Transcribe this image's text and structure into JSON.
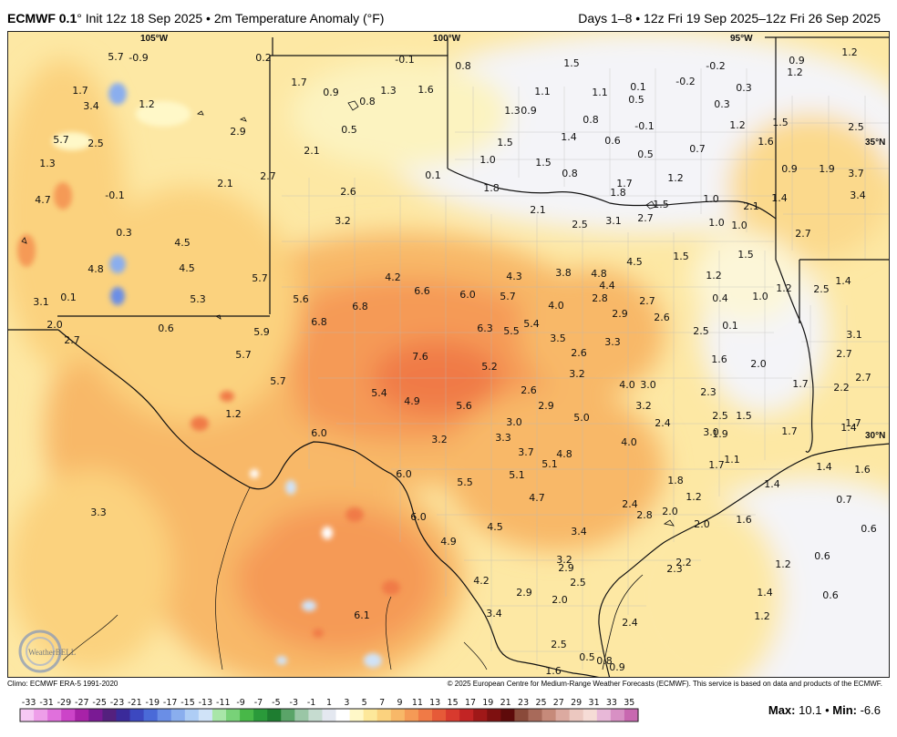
{
  "header": {
    "model": "ECMWF 0.1",
    "init": "° Init 12z 18 Sep 2025 • 2m Temperature Anomaly (°F)",
    "valid": "Days 1–8 • 12z Fri 19 Sep 2025–12z Fri 26 Sep 2025"
  },
  "coordinates": {
    "lon105": "105°W",
    "lon100": "100°W",
    "lon95": "95°W",
    "lat35": "35°N",
    "lat30": "30°N"
  },
  "footer": {
    "climo": "Climo: ECMWF ERA-5 1991-2020",
    "credit": "© 2025 European Centre for Medium-Range Weather Forecasts (ECMWF). This service is based on data and products of the ECMWF."
  },
  "stats": {
    "max_label": "Max:",
    "max_value": "10.1",
    "sep": "•",
    "min_label": "Min:",
    "min_value": "-6.6"
  },
  "logo_text": "WeatherBELL",
  "legend": {
    "ticks": [
      "-33",
      "-31",
      "-29",
      "-27",
      "-25",
      "-23",
      "-21",
      "-19",
      "-17",
      "-15",
      "-13",
      "-11",
      "-9",
      "-7",
      "-5",
      "-3",
      "-1",
      "1",
      "3",
      "5",
      "7",
      "9",
      "11",
      "13",
      "15",
      "17",
      "19",
      "21",
      "23",
      "25",
      "27",
      "29",
      "31",
      "33",
      "35"
    ],
    "colors": [
      "#f6c8f4",
      "#ee9ee9",
      "#e070dc",
      "#cc44c8",
      "#a822a8",
      "#7a1a94",
      "#54207e",
      "#3a2a9a",
      "#3c48c0",
      "#4a6ad8",
      "#6a8ee6",
      "#8aaeee",
      "#aecdf5",
      "#d0e3f8",
      "#a8e6a8",
      "#78d278",
      "#48b848",
      "#2a9a3a",
      "#1e7d30",
      "#5aa468",
      "#9ac6a6",
      "#c6dcd0",
      "#e4e8f0",
      "#ffffff",
      "#fff8c8",
      "#fde89a",
      "#fbd27e",
      "#f8b868",
      "#f59a56",
      "#f07a46",
      "#e65a38",
      "#d83a2e",
      "#c22424",
      "#a01818",
      "#7e1010",
      "#5e0a0a",
      "#8a4a3a",
      "#a86a5a",
      "#c68a7a",
      "#dcaaa0",
      "#ecc8c0",
      "#f6dcd6",
      "#e8b8d8",
      "#d890c4",
      "#c868b0"
    ]
  },
  "anomaly_labels": [
    {
      "t": "5.7",
      "c": [
        126,
        61
      ]
    },
    {
      "t": "-0.9",
      "c": [
        151,
        62
      ]
    },
    {
      "t": "0.2",
      "c": [
        288,
        62
      ]
    },
    {
      "t": "-0.1",
      "c": [
        443,
        64
      ]
    },
    {
      "t": "0.8",
      "c": [
        507,
        71
      ]
    },
    {
      "t": "1.5",
      "c": [
        626,
        68
      ]
    },
    {
      "t": "-0.2",
      "c": [
        784,
        71
      ]
    },
    {
      "t": "0.9",
      "c": [
        873,
        65
      ]
    },
    {
      "t": "1.2",
      "c": [
        931,
        56
      ]
    },
    {
      "t": "1.2",
      "c": [
        871,
        78
      ]
    },
    {
      "t": "1.7",
      "c": [
        87,
        98
      ]
    },
    {
      "t": "1.7",
      "c": [
        327,
        89
      ]
    },
    {
      "t": "0.9",
      "c": [
        362,
        100
      ]
    },
    {
      "t": "1.3",
      "c": [
        425,
        98
      ]
    },
    {
      "t": "1.6",
      "c": [
        466,
        97
      ]
    },
    {
      "t": "1.1",
      "c": [
        594,
        99
      ]
    },
    {
      "t": "1.1",
      "c": [
        657,
        100
      ]
    },
    {
      "t": "0.1",
      "c": [
        699,
        94
      ]
    },
    {
      "t": "-0.2",
      "c": [
        751,
        88
      ]
    },
    {
      "t": "0.3",
      "c": [
        815,
        95
      ]
    },
    {
      "t": "3.4",
      "c": [
        99,
        115
      ]
    },
    {
      "t": "1.2",
      "c": [
        160,
        113
      ]
    },
    {
      "t": "0.8",
      "c": [
        402,
        110
      ]
    },
    {
      "t": "0.5",
      "c": [
        697,
        108
      ]
    },
    {
      "t": "1.3",
      "c": [
        561,
        120
      ]
    },
    {
      "t": "0.9",
      "c": [
        579,
        120
      ]
    },
    {
      "t": "0.3",
      "c": [
        791,
        113
      ]
    },
    {
      "t": "0.8",
      "c": [
        647,
        130
      ]
    },
    {
      "t": "-0.1",
      "c": [
        706,
        137
      ]
    },
    {
      "t": "1.2",
      "c": [
        808,
        136
      ]
    },
    {
      "t": "1.5",
      "c": [
        855,
        133
      ]
    },
    {
      "t": "2.5",
      "c": [
        938,
        138
      ]
    },
    {
      "t": "2.9",
      "c": [
        260,
        143
      ]
    },
    {
      "t": "0.5",
      "c": [
        382,
        141
      ]
    },
    {
      "t": "5.7",
      "c": [
        66,
        152
      ]
    },
    {
      "t": "2.5",
      "c": [
        104,
        156
      ]
    },
    {
      "t": "1.5",
      "c": [
        553,
        155
      ]
    },
    {
      "t": "1.4",
      "c": [
        623,
        149
      ]
    },
    {
      "t": "0.6",
      "c": [
        671,
        153
      ]
    },
    {
      "t": "0.5",
      "c": [
        707,
        168
      ]
    },
    {
      "t": "0.7",
      "c": [
        764,
        162
      ]
    },
    {
      "t": "1.6",
      "c": [
        839,
        154
      ]
    },
    {
      "t": "2.1",
      "c": [
        341,
        164
      ]
    },
    {
      "t": "1.3",
      "c": [
        51,
        178
      ]
    },
    {
      "t": "1.0",
      "c": [
        534,
        174
      ]
    },
    {
      "t": "1.5",
      "c": [
        595,
        177
      ]
    },
    {
      "t": "0.8",
      "c": [
        624,
        189
      ]
    },
    {
      "t": "1.2",
      "c": [
        740,
        194
      ]
    },
    {
      "t": "0.9",
      "c": [
        865,
        184
      ]
    },
    {
      "t": "1.9",
      "c": [
        906,
        184
      ]
    },
    {
      "t": "3.7",
      "c": [
        938,
        189
      ]
    },
    {
      "t": "2.7",
      "c": [
        293,
        192
      ]
    },
    {
      "t": "0.1",
      "c": [
        474,
        191
      ]
    },
    {
      "t": "2.1",
      "c": [
        246,
        200
      ]
    },
    {
      "t": "1.8",
      "c": [
        538,
        205
      ]
    },
    {
      "t": "1.7",
      "c": [
        684,
        200
      ]
    },
    {
      "t": "1.8",
      "c": [
        677,
        210
      ]
    },
    {
      "t": "1.5",
      "c": [
        724,
        223
      ]
    },
    {
      "t": "1.0",
      "c": [
        779,
        217
      ]
    },
    {
      "t": "2.1",
      "c": [
        823,
        225
      ]
    },
    {
      "t": "1.4",
      "c": [
        854,
        216
      ]
    },
    {
      "t": "3.4",
      "c": [
        940,
        213
      ]
    },
    {
      "t": "4.7",
      "c": [
        46,
        218
      ]
    },
    {
      "t": "-0.1",
      "c": [
        125,
        213
      ]
    },
    {
      "t": "2.6",
      "c": [
        381,
        209
      ]
    },
    {
      "t": "2.1",
      "c": [
        589,
        229
      ]
    },
    {
      "t": "2.5",
      "c": [
        635,
        245
      ]
    },
    {
      "t": "3.1",
      "c": [
        672,
        241
      ]
    },
    {
      "t": "2.7",
      "c": [
        707,
        238
      ]
    },
    {
      "t": "1.0",
      "c": [
        785,
        243
      ]
    },
    {
      "t": "1.0",
      "c": [
        810,
        246
      ]
    },
    {
      "t": "2.7",
      "c": [
        880,
        255
      ]
    },
    {
      "t": "3.2",
      "c": [
        375,
        241
      ]
    },
    {
      "t": "0.3",
      "c": [
        135,
        254
      ]
    },
    {
      "t": "4.5",
      "c": [
        199,
        265
      ]
    },
    {
      "t": "1.5",
      "c": [
        746,
        280
      ]
    },
    {
      "t": "1.5",
      "c": [
        817,
        278
      ]
    },
    {
      "t": "4.5",
      "c": [
        695,
        286
      ]
    },
    {
      "t": "4.8",
      "c": [
        104,
        294
      ]
    },
    {
      "t": "4.5",
      "c": [
        204,
        293
      ]
    },
    {
      "t": "3.8",
      "c": [
        617,
        298
      ]
    },
    {
      "t": "4.8",
      "c": [
        656,
        299
      ]
    },
    {
      "t": "1.2",
      "c": [
        782,
        301
      ]
    },
    {
      "t": "4.3",
      "c": [
        563,
        302
      ]
    },
    {
      "t": "4.2",
      "c": [
        430,
        303
      ]
    },
    {
      "t": "5.7",
      "c": [
        284,
        304
      ]
    },
    {
      "t": "1.4",
      "c": [
        924,
        307
      ]
    },
    {
      "t": "4.4",
      "c": [
        665,
        312
      ]
    },
    {
      "t": "1.2",
      "c": [
        859,
        315
      ]
    },
    {
      "t": "2.5",
      "c": [
        900,
        316
      ]
    },
    {
      "t": "6.6",
      "c": [
        462,
        318
      ]
    },
    {
      "t": "6.0",
      "c": [
        512,
        322
      ]
    },
    {
      "t": "5.7",
      "c": [
        556,
        324
      ]
    },
    {
      "t": "2.8",
      "c": [
        657,
        326
      ]
    },
    {
      "t": "0.4",
      "c": [
        789,
        326
      ]
    },
    {
      "t": "1.0",
      "c": [
        833,
        324
      ]
    },
    {
      "t": "2.7",
      "c": [
        709,
        329
      ]
    },
    {
      "t": "0.1",
      "c": [
        74,
        325
      ]
    },
    {
      "t": "3.1",
      "c": [
        44,
        330
      ]
    },
    {
      "t": "5.3",
      "c": [
        216,
        327
      ]
    },
    {
      "t": "5.6",
      "c": [
        329,
        327
      ]
    },
    {
      "t": "6.8",
      "c": [
        394,
        335
      ]
    },
    {
      "t": "4.0",
      "c": [
        609,
        334
      ]
    },
    {
      "t": "2.9",
      "c": [
        679,
        343
      ]
    },
    {
      "t": "2.6",
      "c": [
        725,
        347
      ]
    },
    {
      "t": "6.8",
      "c": [
        349,
        352
      ]
    },
    {
      "t": "5.4",
      "c": [
        582,
        354
      ]
    },
    {
      "t": "0.6",
      "c": [
        181,
        359
      ]
    },
    {
      "t": "2.0",
      "c": [
        59,
        355
      ]
    },
    {
      "t": "5.9",
      "c": [
        286,
        363
      ]
    },
    {
      "t": "6.3",
      "c": [
        531,
        359
      ]
    },
    {
      "t": "5.5",
      "c": [
        560,
        362
      ]
    },
    {
      "t": "0.1",
      "c": [
        800,
        356
      ]
    },
    {
      "t": "2.5",
      "c": [
        768,
        362
      ]
    },
    {
      "t": "3.1",
      "c": [
        936,
        366
      ]
    },
    {
      "t": "2.7",
      "c": [
        78,
        372
      ]
    },
    {
      "t": "3.5",
      "c": [
        611,
        370
      ]
    },
    {
      "t": "3.3",
      "c": [
        671,
        374
      ]
    },
    {
      "t": "5.7",
      "c": [
        266,
        388
      ]
    },
    {
      "t": "7.6",
      "c": [
        460,
        390
      ]
    },
    {
      "t": "2.6",
      "c": [
        634,
        386
      ]
    },
    {
      "t": "1.6",
      "c": [
        788,
        393
      ]
    },
    {
      "t": "2.7",
      "c": [
        925,
        387
      ]
    },
    {
      "t": "5.2",
      "c": [
        536,
        401
      ]
    },
    {
      "t": "2.0",
      "c": [
        831,
        398
      ]
    },
    {
      "t": "3.2",
      "c": [
        632,
        409
      ]
    },
    {
      "t": "5.7",
      "c": [
        304,
        417
      ]
    },
    {
      "t": "4.0",
      "c": [
        687,
        421
      ]
    },
    {
      "t": "3.0",
      "c": [
        710,
        421
      ]
    },
    {
      "t": "1.7",
      "c": [
        877,
        420
      ]
    },
    {
      "t": "2.7",
      "c": [
        946,
        413
      ]
    },
    {
      "t": "2.2",
      "c": [
        922,
        424
      ]
    },
    {
      "t": "5.4",
      "c": [
        415,
        430
      ]
    },
    {
      "t": "2.6",
      "c": [
        579,
        427
      ]
    },
    {
      "t": "2.3",
      "c": [
        776,
        429
      ]
    },
    {
      "t": "4.9",
      "c": [
        451,
        439
      ]
    },
    {
      "t": "5.6",
      "c": [
        508,
        444
      ]
    },
    {
      "t": "2.9",
      "c": [
        598,
        444
      ]
    },
    {
      "t": "3.2",
      "c": [
        705,
        444
      ]
    },
    {
      "t": "1.2",
      "c": [
        255,
        453
      ]
    },
    {
      "t": "5.0",
      "c": [
        637,
        457
      ]
    },
    {
      "t": "2.5",
      "c": [
        789,
        455
      ]
    },
    {
      "t": "1.5",
      "c": [
        815,
        455
      ]
    },
    {
      "t": "3.0",
      "c": [
        563,
        462
      ]
    },
    {
      "t": "2.4",
      "c": [
        726,
        463
      ]
    },
    {
      "t": "1.7",
      "c": [
        865,
        472
      ]
    },
    {
      "t": "1.4",
      "c": [
        930,
        468
      ]
    },
    {
      "t": "1.7",
      "c": [
        935,
        463
      ]
    },
    {
      "t": "3.0",
      "c": [
        779,
        473
      ]
    },
    {
      "t": "6.0",
      "c": [
        349,
        474
      ]
    },
    {
      "t": "3.3",
      "c": [
        551,
        479
      ]
    },
    {
      "t": "3.2",
      "c": [
        481,
        481
      ]
    },
    {
      "t": "4.0",
      "c": [
        689,
        484
      ]
    },
    {
      "t": "1.9",
      "c": [
        789,
        475
      ]
    },
    {
      "t": "3.7",
      "c": [
        576,
        495
      ]
    },
    {
      "t": "4.8",
      "c": [
        618,
        497
      ]
    },
    {
      "t": "1.1",
      "c": [
        802,
        503
      ]
    },
    {
      "t": "5.1",
      "c": [
        602,
        508
      ]
    },
    {
      "t": "1.7",
      "c": [
        785,
        509
      ]
    },
    {
      "t": "1.4",
      "c": [
        903,
        511
      ]
    },
    {
      "t": "1.6",
      "c": [
        945,
        514
      ]
    },
    {
      "t": "6.0",
      "c": [
        442,
        519
      ]
    },
    {
      "t": "5.1",
      "c": [
        566,
        520
      ]
    },
    {
      "t": "5.5",
      "c": [
        509,
        528
      ]
    },
    {
      "t": "1.8",
      "c": [
        740,
        526
      ]
    },
    {
      "t": "1.4",
      "c": [
        846,
        530
      ]
    },
    {
      "t": "4.7",
      "c": [
        588,
        545
      ]
    },
    {
      "t": "1.2",
      "c": [
        760,
        544
      ]
    },
    {
      "t": "0.7",
      "c": [
        925,
        547
      ]
    },
    {
      "t": "2.4",
      "c": [
        690,
        552
      ]
    },
    {
      "t": "3.3",
      "c": [
        107,
        561
      ]
    },
    {
      "t": "2.8",
      "c": [
        706,
        564
      ]
    },
    {
      "t": "2.0",
      "c": [
        734,
        560
      ]
    },
    {
      "t": "6.0",
      "c": [
        458,
        566
      ]
    },
    {
      "t": "1.6",
      "c": [
        815,
        569
      ]
    },
    {
      "t": "2.0",
      "c": [
        769,
        574
      ]
    },
    {
      "t": "4.5",
      "c": [
        542,
        577
      ]
    },
    {
      "t": "0.6",
      "c": [
        952,
        579
      ]
    },
    {
      "t": "3.4",
      "c": [
        634,
        582
      ]
    },
    {
      "t": "4.9",
      "c": [
        491,
        593
      ]
    },
    {
      "t": "3.2",
      "c": [
        618,
        613
      ]
    },
    {
      "t": "2.2",
      "c": [
        749,
        616
      ]
    },
    {
      "t": "0.6",
      "c": [
        901,
        609
      ]
    },
    {
      "t": "2.9",
      "c": [
        620,
        622
      ]
    },
    {
      "t": "2.3",
      "c": [
        739,
        623
      ]
    },
    {
      "t": "1.2",
      "c": [
        858,
        618
      ]
    },
    {
      "t": "2.5",
      "c": [
        633,
        638
      ]
    },
    {
      "t": "4.2",
      "c": [
        527,
        636
      ]
    },
    {
      "t": "2.9",
      "c": [
        574,
        649
      ]
    },
    {
      "t": "1.4",
      "c": [
        838,
        649
      ]
    },
    {
      "t": "0.6",
      "c": [
        910,
        652
      ]
    },
    {
      "t": "2.0",
      "c": [
        613,
        657
      ]
    },
    {
      "t": "3.4",
      "c": [
        541,
        672
      ]
    },
    {
      "t": "6.1",
      "c": [
        396,
        674
      ]
    },
    {
      "t": "1.2",
      "c": [
        835,
        675
      ]
    },
    {
      "t": "2.4",
      "c": [
        690,
        682
      ]
    },
    {
      "t": "2.5",
      "c": [
        612,
        706
      ]
    },
    {
      "t": "0.5",
      "c": [
        643,
        720
      ]
    },
    {
      "t": "0.8",
      "c": [
        662,
        724
      ]
    },
    {
      "t": "0.9",
      "c": [
        676,
        731
      ]
    },
    {
      "t": "1.6",
      "c": [
        606,
        735
      ]
    }
  ]
}
